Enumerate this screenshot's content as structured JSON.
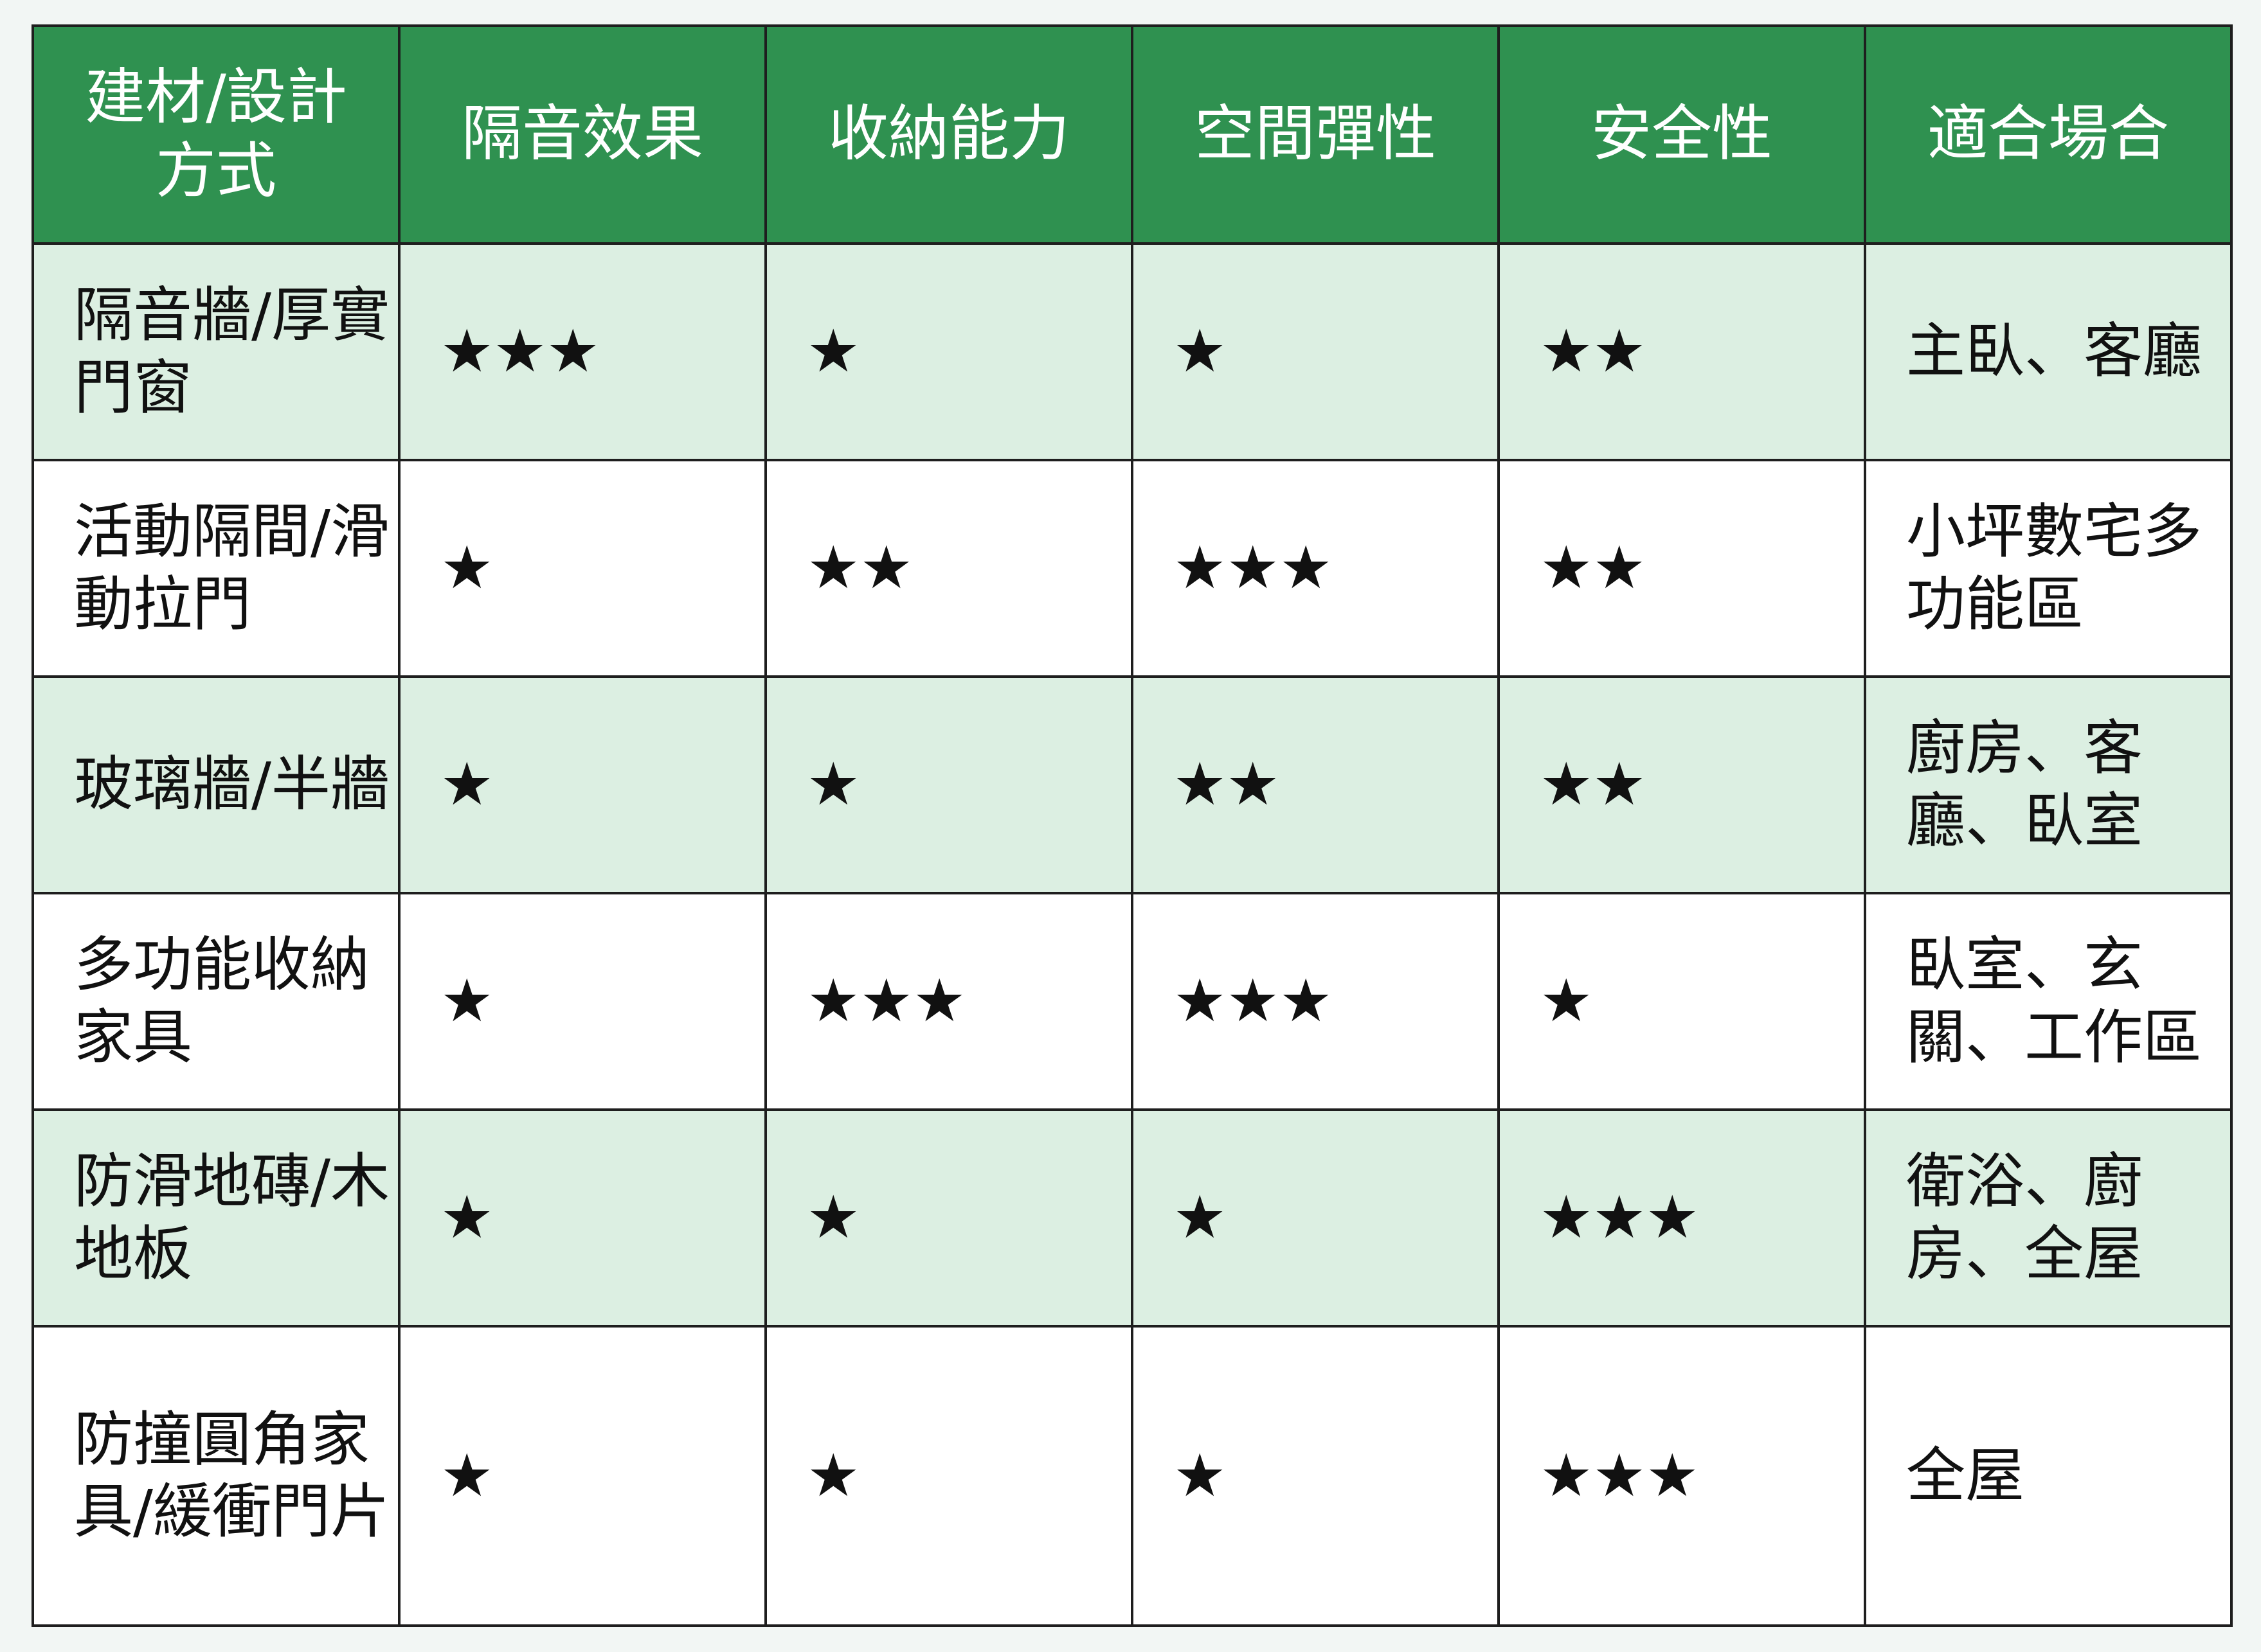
{
  "table": {
    "header": [
      "建材/設計方式",
      "隔音效果",
      "收納能力",
      "空間彈性",
      "安全性",
      "適合場合"
    ],
    "rows": [
      [
        "隔音牆/厚實門窗",
        "★★★",
        "★",
        "★",
        "★★",
        "主臥、客廳"
      ],
      [
        "活動隔間/滑動拉門",
        "★",
        "★★",
        "★★★",
        "★★",
        "小坪數宅多功能區"
      ],
      [
        "玻璃牆/半牆",
        "★",
        "★",
        "★★",
        "★★",
        "廚房、客廳、臥室"
      ],
      [
        "多功能收納家具",
        "★",
        "★★★",
        "★★★",
        "★",
        "臥室、玄關、工作區"
      ],
      [
        "防滑地磚/木地板",
        "★",
        "★",
        "★",
        "★★★",
        "衛浴、廚房、全屋"
      ],
      [
        "防撞圓角家具/緩衝門片",
        "★",
        "★",
        "★",
        "★★★",
        "全屋"
      ]
    ]
  }
}
